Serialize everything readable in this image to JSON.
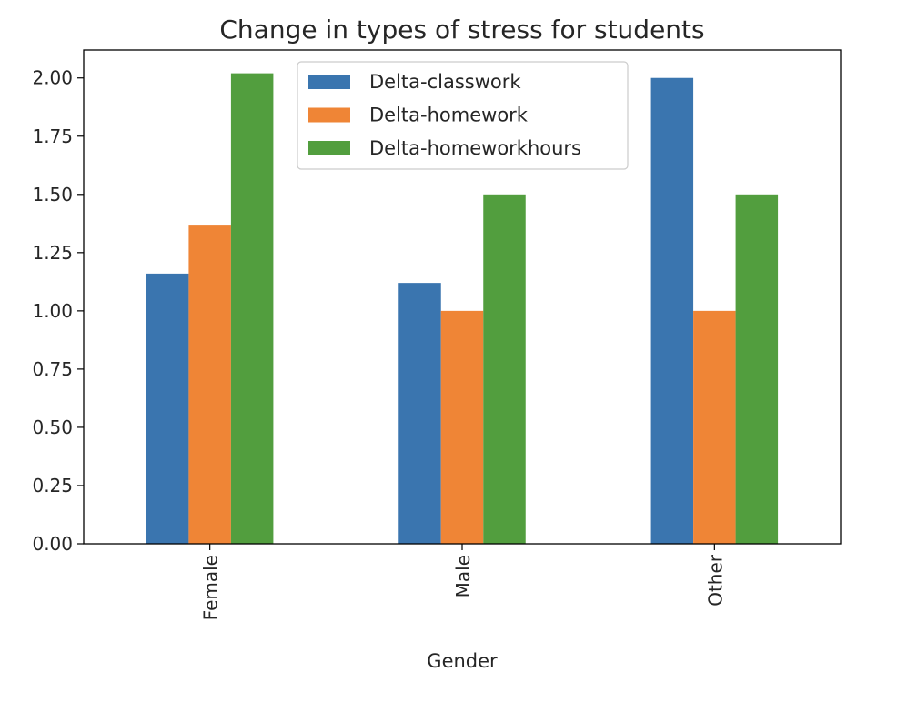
{
  "chart_data": {
    "type": "bar",
    "title": "Change in types of stress for students",
    "xlabel": "Gender",
    "ylabel": "",
    "categories": [
      "Female",
      "Male",
      "Other"
    ],
    "series": [
      {
        "name": "Delta-classwork",
        "values": [
          1.16,
          1.12,
          2.0
        ],
        "color": "#3a75af"
      },
      {
        "name": "Delta-homework",
        "values": [
          1.37,
          1.0,
          1.0
        ],
        "color": "#ef8536"
      },
      {
        "name": "Delta-homeworkhours",
        "values": [
          2.02,
          1.5,
          1.5
        ],
        "color": "#529e3e"
      }
    ],
    "ylim": [
      0,
      2.12
    ],
    "yticks": [
      "0.00",
      "0.25",
      "0.50",
      "0.75",
      "1.00",
      "1.25",
      "1.50",
      "1.75",
      "2.00"
    ],
    "legend_position": "top-center",
    "grid": false
  }
}
